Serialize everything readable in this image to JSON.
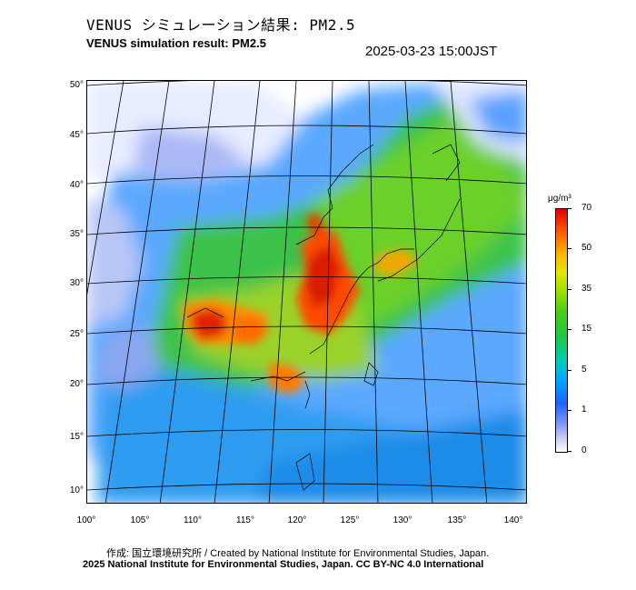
{
  "title_jp": "VENUS シミュレーション結果: PM2.5",
  "title_en": "VENUS simulation result: PM2.5",
  "timestamp": "2025-03-23 15:00JST",
  "lat_labels": [
    "50°",
    "45°",
    "40°",
    "35°",
    "30°",
    "25°",
    "20°",
    "15°",
    "10°"
  ],
  "lon_labels": [
    "100°",
    "105°",
    "110°",
    "115°",
    "120°",
    "125°",
    "130°",
    "135°",
    "140°"
  ],
  "colorbar": {
    "unit": "μg/m³",
    "ticks": [
      "70",
      "50",
      "35",
      "15",
      "5",
      "1",
      "0"
    ]
  },
  "credit": "作成: 国立環境研究所 / Created by National Institute for Environmental Studies, Japan.",
  "copyright": "2025 National Institute for Environmental Studies, Japan. CC BY-NC 4.0 International"
}
